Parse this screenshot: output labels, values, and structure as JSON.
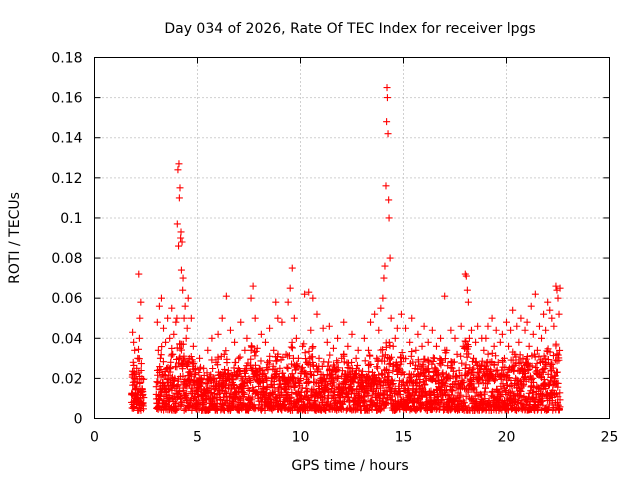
{
  "chart_data": {
    "type": "scatter",
    "title": "Day 034 of 2026, Rate Of TEC Index for receiver lpgs",
    "xlabel": "GPS time / hours",
    "ylabel": "ROTI / TECUs",
    "xlim": [
      0,
      25
    ],
    "ylim": [
      0,
      0.18
    ],
    "xticks": [
      0,
      5,
      10,
      15,
      20,
      25
    ],
    "xtick_labels": [
      "0",
      "5",
      "10",
      "15",
      "20",
      "25"
    ],
    "yticks": [
      0,
      0.02,
      0.04,
      0.06,
      0.08,
      0.1,
      0.12,
      0.14,
      0.16,
      0.18
    ],
    "ytick_labels": [
      "0",
      "0.02",
      "0.04",
      "0.06",
      "0.08",
      "0.1",
      "0.12",
      "0.14",
      "0.16",
      "0.18"
    ],
    "grid": true,
    "marker": "+",
    "marker_color": "#ff0000",
    "series": [
      {
        "name": "ROTI",
        "x": [
          1.8,
          1.85,
          1.85,
          1.9,
          1.9,
          1.95,
          1.95,
          2.0,
          2.05,
          2.1,
          2.1,
          2.15,
          2.2,
          2.2,
          2.25,
          2.3,
          2.35,
          1.88,
          2.02,
          2.18,
          3.0,
          3.05,
          3.1,
          3.1,
          3.15,
          3.2,
          3.25,
          3.3,
          3.35,
          3.4,
          3.45,
          3.5,
          3.55,
          3.6,
          3.65,
          3.7,
          3.75,
          3.8,
          3.85,
          3.9,
          3.95,
          4.0,
          4.02,
          4.05,
          4.08,
          4.1,
          4.12,
          4.15,
          4.18,
          4.2,
          4.22,
          4.25,
          4.28,
          4.3,
          4.35,
          4.4,
          4.45,
          4.5,
          4.55,
          4.6,
          4.7,
          4.8,
          4.9,
          5.0,
          5.1,
          5.2,
          5.3,
          5.4,
          5.5,
          5.6,
          5.7,
          5.8,
          5.9,
          6.0,
          6.1,
          6.2,
          6.3,
          6.4,
          6.5,
          6.6,
          6.7,
          6.8,
          6.9,
          7.0,
          7.1,
          7.2,
          7.3,
          7.4,
          7.5,
          7.6,
          7.7,
          7.8,
          7.9,
          8.0,
          8.1,
          8.2,
          8.3,
          8.4,
          8.5,
          8.6,
          8.7,
          8.8,
          8.9,
          9.0,
          9.1,
          9.2,
          9.3,
          9.4,
          9.5,
          9.6,
          9.7,
          9.8,
          9.9,
          10.0,
          10.1,
          10.2,
          10.3,
          10.4,
          10.5,
          10.6,
          10.7,
          10.8,
          10.9,
          11.0,
          11.1,
          11.2,
          11.3,
          11.4,
          11.5,
          11.6,
          11.7,
          11.8,
          11.9,
          12.0,
          12.1,
          12.2,
          12.3,
          12.4,
          12.5,
          12.6,
          12.7,
          12.8,
          12.9,
          13.0,
          13.1,
          13.2,
          13.3,
          13.4,
          13.5,
          13.6,
          13.7,
          13.8,
          13.9,
          14.0,
          14.05,
          14.1,
          14.15,
          14.18,
          14.2,
          14.22,
          14.25,
          14.28,
          14.3,
          14.35,
          14.4,
          14.5,
          14.6,
          14.7,
          14.8,
          14.9,
          15.0,
          15.1,
          15.2,
          15.3,
          15.4,
          15.5,
          15.6,
          15.7,
          15.8,
          15.9,
          16.0,
          16.1,
          16.2,
          16.3,
          16.4,
          16.5,
          16.6,
          16.7,
          16.8,
          16.9,
          17.0,
          17.1,
          17.2,
          17.3,
          17.4,
          17.5,
          17.6,
          17.7,
          17.8,
          17.9,
          18.0,
          18.05,
          18.1,
          18.15,
          18.2,
          18.3,
          18.4,
          18.5,
          18.6,
          18.7,
          18.8,
          18.9,
          19.0,
          19.1,
          19.2,
          19.3,
          19.4,
          19.5,
          19.6,
          19.7,
          19.8,
          19.9,
          20.0,
          20.1,
          20.2,
          20.3,
          20.4,
          20.5,
          20.6,
          20.7,
          20.8,
          20.9,
          21.0,
          21.1,
          21.2,
          21.3,
          21.4,
          21.5,
          21.6,
          21.7,
          21.8,
          21.9,
          22.0,
          22.1,
          22.2,
          22.3,
          22.4,
          22.45,
          22.5,
          22.55,
          22.6
        ],
        "y": [
          0.008,
          0.043,
          0.012,
          0.038,
          0.006,
          0.02,
          0.034,
          0.015,
          0.025,
          0.01,
          0.03,
          0.072,
          0.05,
          0.018,
          0.058,
          0.02,
          0.012,
          0.028,
          0.022,
          0.04,
          0.012,
          0.048,
          0.01,
          0.034,
          0.056,
          0.03,
          0.06,
          0.022,
          0.045,
          0.015,
          0.038,
          0.025,
          0.05,
          0.018,
          0.04,
          0.028,
          0.055,
          0.032,
          0.042,
          0.02,
          0.048,
          0.05,
          0.097,
          0.124,
          0.086,
          0.127,
          0.11,
          0.115,
          0.09,
          0.093,
          0.074,
          0.088,
          0.064,
          0.07,
          0.05,
          0.056,
          0.04,
          0.045,
          0.06,
          0.03,
          0.05,
          0.036,
          0.025,
          0.012,
          0.03,
          0.018,
          0.025,
          0.01,
          0.034,
          0.02,
          0.04,
          0.016,
          0.028,
          0.042,
          0.02,
          0.05,
          0.032,
          0.061,
          0.024,
          0.044,
          0.018,
          0.038,
          0.022,
          0.03,
          0.048,
          0.016,
          0.034,
          0.04,
          0.02,
          0.06,
          0.066,
          0.05,
          0.035,
          0.025,
          0.042,
          0.018,
          0.038,
          0.028,
          0.045,
          0.02,
          0.034,
          0.058,
          0.05,
          0.025,
          0.048,
          0.015,
          0.032,
          0.058,
          0.065,
          0.075,
          0.05,
          0.04,
          0.03,
          0.02,
          0.036,
          0.062,
          0.028,
          0.063,
          0.044,
          0.06,
          0.018,
          0.052,
          0.03,
          0.022,
          0.045,
          0.014,
          0.038,
          0.046,
          0.02,
          0.035,
          0.024,
          0.04,
          0.015,
          0.03,
          0.048,
          0.018,
          0.036,
          0.025,
          0.042,
          0.02,
          0.03,
          0.034,
          0.016,
          0.022,
          0.04,
          0.016,
          0.034,
          0.048,
          0.02,
          0.052,
          0.03,
          0.044,
          0.055,
          0.06,
          0.07,
          0.076,
          0.116,
          0.148,
          0.165,
          0.16,
          0.142,
          0.109,
          0.1,
          0.08,
          0.05,
          0.036,
          0.04,
          0.045,
          0.025,
          0.052,
          0.03,
          0.045,
          0.018,
          0.038,
          0.05,
          0.022,
          0.034,
          0.042,
          0.026,
          0.036,
          0.046,
          0.024,
          0.038,
          0.02,
          0.044,
          0.03,
          0.036,
          0.022,
          0.04,
          0.028,
          0.061,
          0.034,
          0.02,
          0.044,
          0.028,
          0.04,
          0.032,
          0.024,
          0.046,
          0.036,
          0.072,
          0.071,
          0.064,
          0.058,
          0.04,
          0.044,
          0.03,
          0.038,
          0.046,
          0.026,
          0.04,
          0.034,
          0.04,
          0.046,
          0.028,
          0.05,
          0.036,
          0.044,
          0.028,
          0.038,
          0.042,
          0.03,
          0.048,
          0.036,
          0.044,
          0.054,
          0.032,
          0.046,
          0.038,
          0.05,
          0.03,
          0.044,
          0.048,
          0.036,
          0.056,
          0.042,
          0.062,
          0.034,
          0.046,
          0.04,
          0.052,
          0.044,
          0.058,
          0.054,
          0.05,
          0.046,
          0.066,
          0.064,
          0.06,
          0.052,
          0.065
        ]
      }
    ]
  }
}
